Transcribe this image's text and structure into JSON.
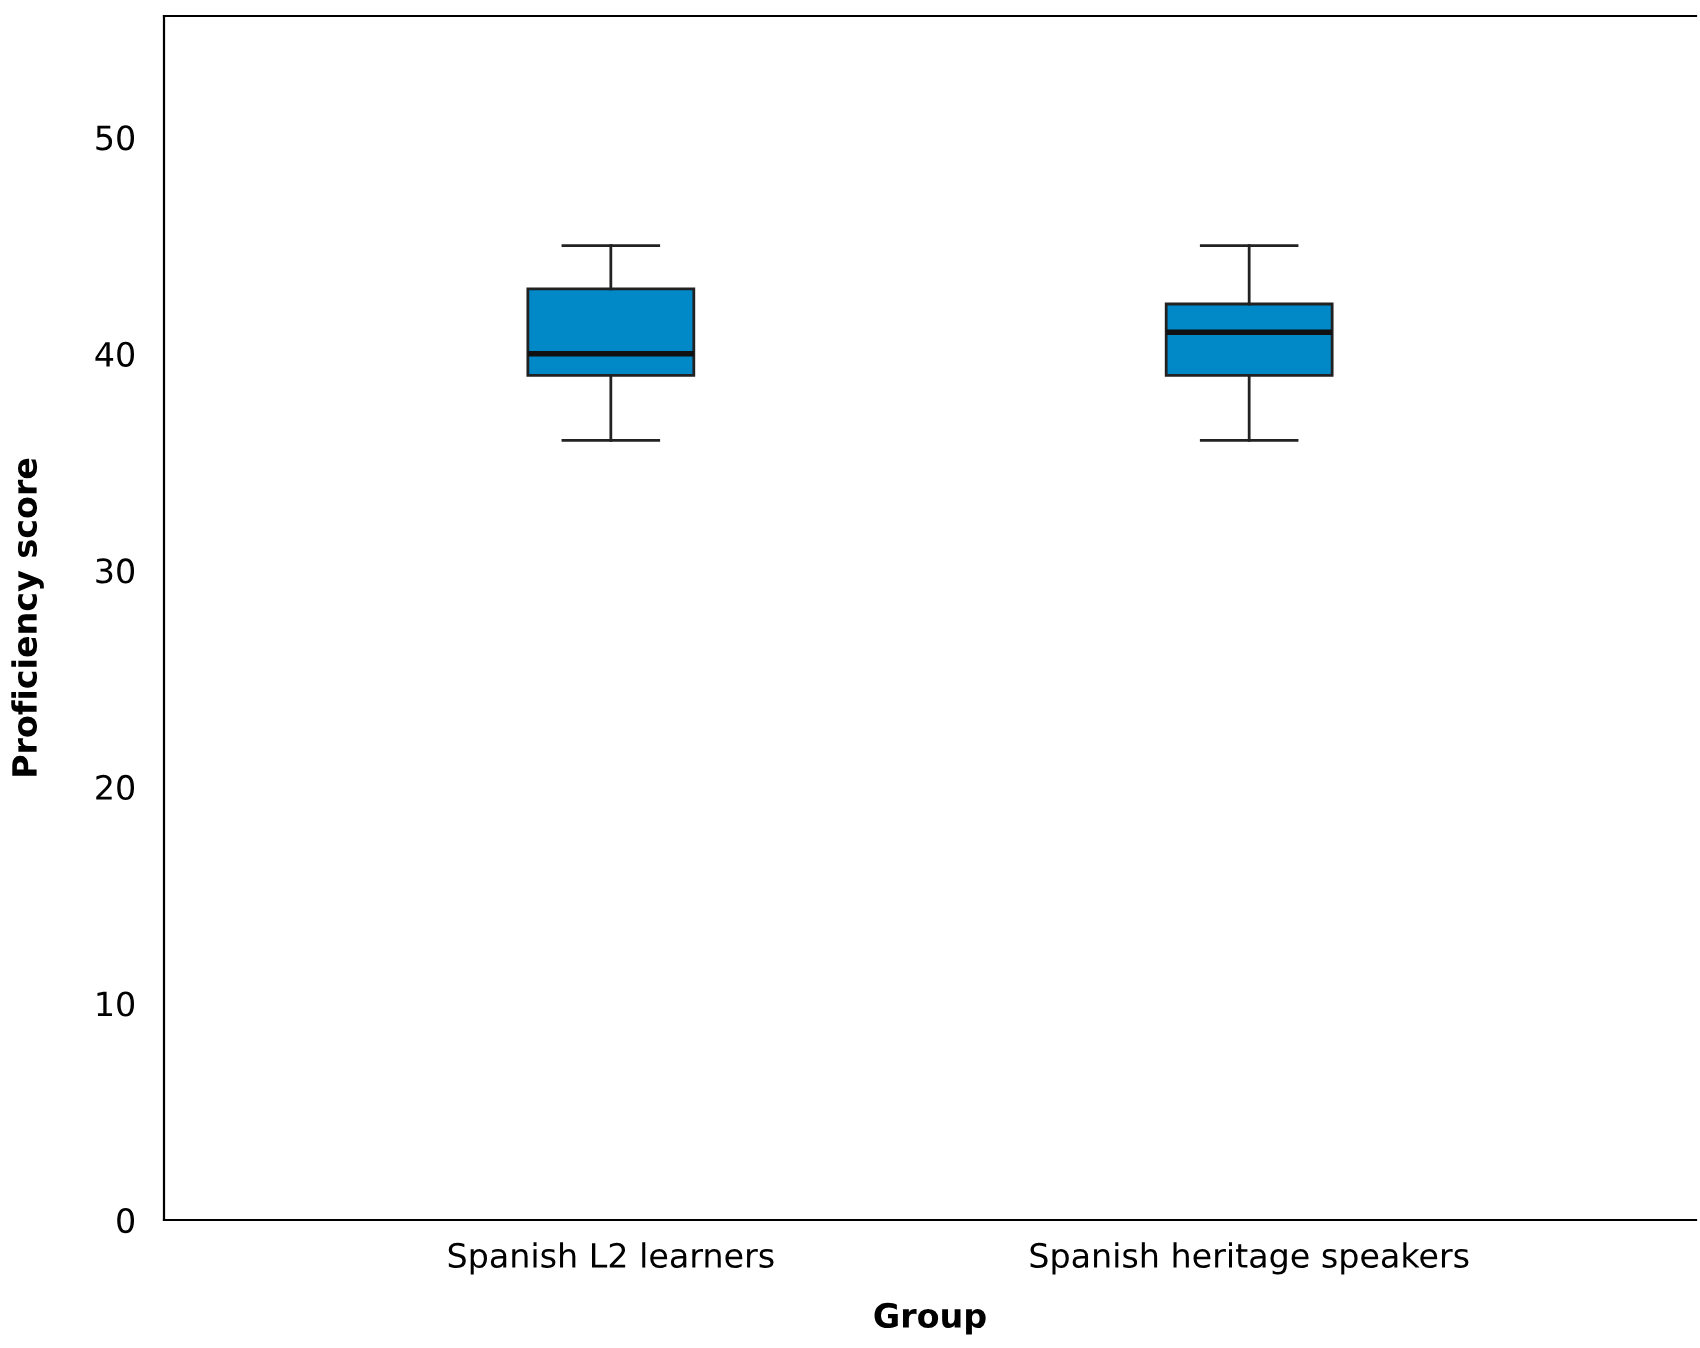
{
  "chart_data": {
    "type": "box",
    "xlabel": "Group",
    "ylabel": "Proficiency score",
    "categories": [
      "Spanish L2 learners",
      "Spanish heritage speakers"
    ],
    "series": [
      {
        "color": "#0088c7",
        "boxes": [
          {
            "low": 36,
            "q1": 39,
            "median": 40,
            "q3": 43,
            "high": 45
          },
          {
            "low": 36,
            "q1": 39,
            "median": 41,
            "q3": 42.3,
            "high": 45
          }
        ]
      }
    ],
    "ylim": [
      0,
      55.6
    ],
    "yticks": [
      0,
      10,
      20,
      30,
      40,
      50
    ],
    "grid": false,
    "legend": false
  }
}
